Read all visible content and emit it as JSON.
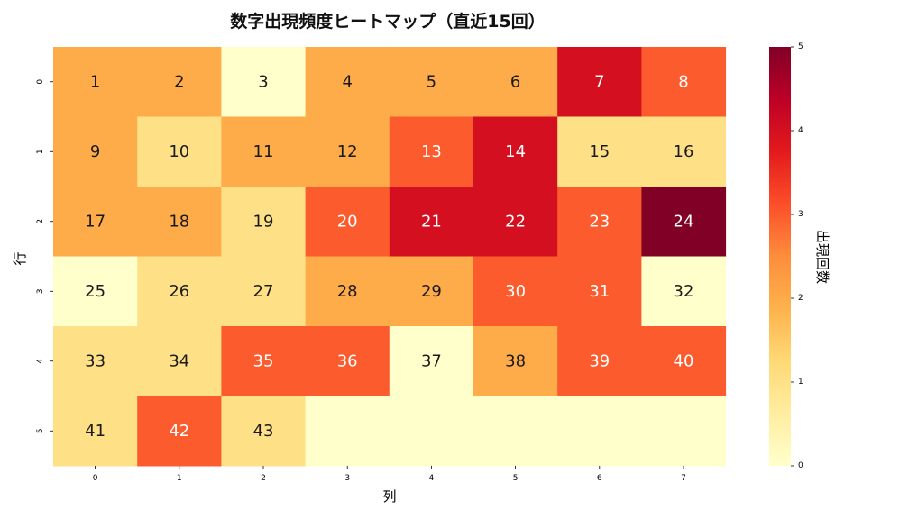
{
  "chart_data": {
    "type": "heatmap",
    "title": "数字出現頻度ヒートマップ（直近15回）",
    "xlabel": "列",
    "ylabel": "行",
    "x_categories": [
      "0",
      "1",
      "2",
      "3",
      "4",
      "5",
      "6",
      "7"
    ],
    "y_categories": [
      "0",
      "1",
      "2",
      "3",
      "4",
      "5"
    ],
    "cell_labels": [
      [
        "1",
        "2",
        "3",
        "4",
        "5",
        "6",
        "7",
        "8"
      ],
      [
        "9",
        "10",
        "11",
        "12",
        "13",
        "14",
        "15",
        "16"
      ],
      [
        "17",
        "18",
        "19",
        "20",
        "21",
        "22",
        "23",
        "24"
      ],
      [
        "25",
        "26",
        "27",
        "28",
        "29",
        "30",
        "31",
        "32"
      ],
      [
        "33",
        "34",
        "35",
        "36",
        "37",
        "38",
        "39",
        "40"
      ],
      [
        "41",
        "42",
        "43",
        "",
        "",
        "",
        "",
        ""
      ]
    ],
    "values": [
      [
        2,
        2,
        0,
        2,
        2,
        2,
        4,
        3
      ],
      [
        2,
        1,
        2,
        2,
        3,
        4,
        1,
        1
      ],
      [
        2,
        2,
        1,
        3,
        4,
        4,
        3,
        5
      ],
      [
        0,
        1,
        1,
        2,
        2,
        3,
        3,
        0
      ],
      [
        1,
        1,
        3,
        3,
        0,
        2,
        3,
        3
      ],
      [
        1,
        3,
        1,
        0,
        0,
        0,
        0,
        0
      ]
    ],
    "colorbar": {
      "label": "出現回数",
      "min": 0,
      "max": 5,
      "ticks": [
        "0",
        "1",
        "2",
        "3",
        "4",
        "5"
      ]
    },
    "colormap": {
      "name": "YlOrRd",
      "stops": [
        "#ffffcc",
        "#ffeda0",
        "#fed976",
        "#feb24c",
        "#fd8d3c",
        "#fc4e2a",
        "#e31a1c",
        "#bd0026",
        "#800026"
      ]
    },
    "grid": false
  }
}
